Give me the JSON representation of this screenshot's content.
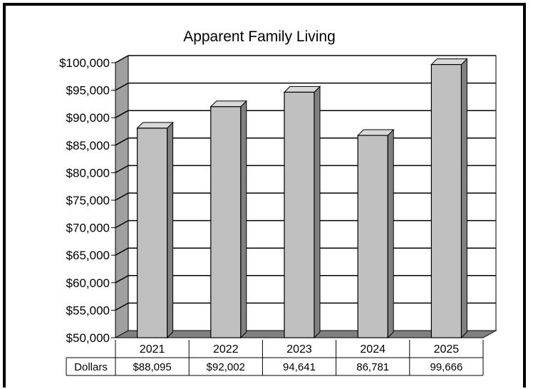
{
  "chart_data": {
    "type": "bar",
    "title": "Apparent Family Living",
    "categories": [
      "2021",
      "2022",
      "2023",
      "2024",
      "2025"
    ],
    "series": [
      {
        "name": "Dollars",
        "values": [
          88095,
          92002,
          94641,
          86781,
          99666
        ]
      }
    ],
    "ylim": [
      50000,
      100000
    ],
    "ytick_step": 5000,
    "yticks": [
      "$50,000",
      "$55,000",
      "$60,000",
      "$65,000",
      "$70,000",
      "$75,000",
      "$80,000",
      "$85,000",
      "$90,000",
      "$95,000",
      "$100,000"
    ],
    "grid": true,
    "style": "3d",
    "data_table": {
      "row_label": "Dollars",
      "cells": [
        "$88,095",
        "$92,002",
        "94,641",
        "86,781",
        "99,666"
      ]
    },
    "colors": {
      "bar_front": "#c0c0c0",
      "bar_side": "#808080",
      "wall": "#a0a0a0",
      "floor": "#808080"
    }
  }
}
